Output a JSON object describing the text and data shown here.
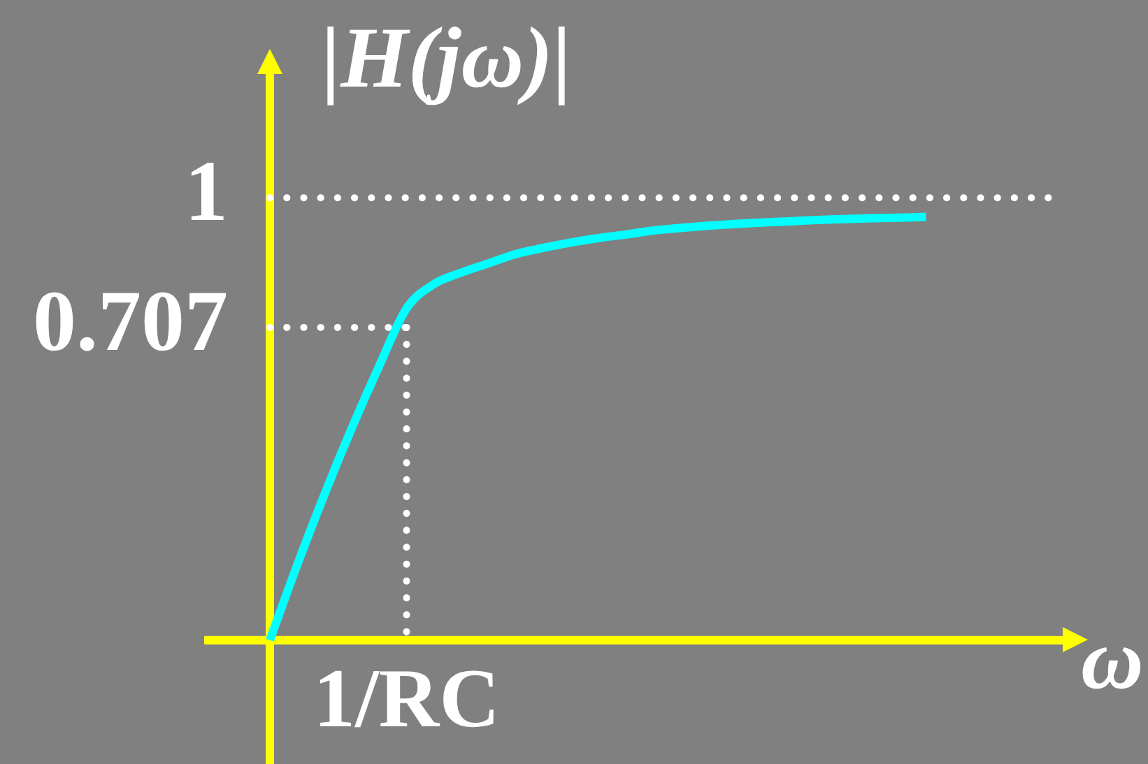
{
  "chart_data": {
    "type": "line",
    "xlabel": "ω",
    "ylabel": "|H(jω)|",
    "categories": [
      null,
      null,
      null,
      null,
      null,
      "1/RC",
      null,
      null,
      null,
      null,
      null,
      null,
      null,
      null,
      null,
      null,
      null,
      null,
      null,
      null,
      null,
      null,
      null,
      null,
      null,
      null,
      null,
      null,
      null,
      null
    ],
    "series": [
      {
        "color": "#00ffff",
        "values": [
          0,
          0.17,
          0.33,
          0.48,
          0.62,
          0.75,
          0.805,
          0.831,
          0.852,
          0.873,
          0.887,
          0.899,
          0.909,
          0.917,
          0.926,
          0.932,
          0.937,
          0.941,
          0.944,
          0.947,
          0.95,
          0.952,
          0.954,
          0.955,
          0.957,
          null,
          null,
          null,
          null,
          null
        ]
      },
      {
        "color": "#ffffff",
        "line_style": "dotted",
        "values": [
          0.707,
          0.707,
          0.707,
          0.707,
          0.707,
          0.707,
          null,
          null,
          null,
          null,
          null,
          null,
          null,
          null,
          null,
          null,
          null,
          null,
          null,
          null,
          null,
          null,
          null,
          null,
          null,
          null,
          null,
          null,
          null,
          null
        ]
      },
      {
        "color": "#ffffff",
        "line_style": "dotted",
        "x": [
          "1/RC",
          "1/RC"
        ],
        "values": [
          0.707,
          0
        ]
      }
    ],
    "ylim": [
      -0.28,
      1.28
    ],
    "yticks": [
      0.707,
      1
    ],
    "ref_lines": [
      {
        "axis": "y",
        "value": 1,
        "color": "#ffffff",
        "line_style": "dotted"
      },
      {
        "axis": "y",
        "value": 0,
        "color": "#ffff00",
        "line_style": "solid"
      }
    ]
  }
}
